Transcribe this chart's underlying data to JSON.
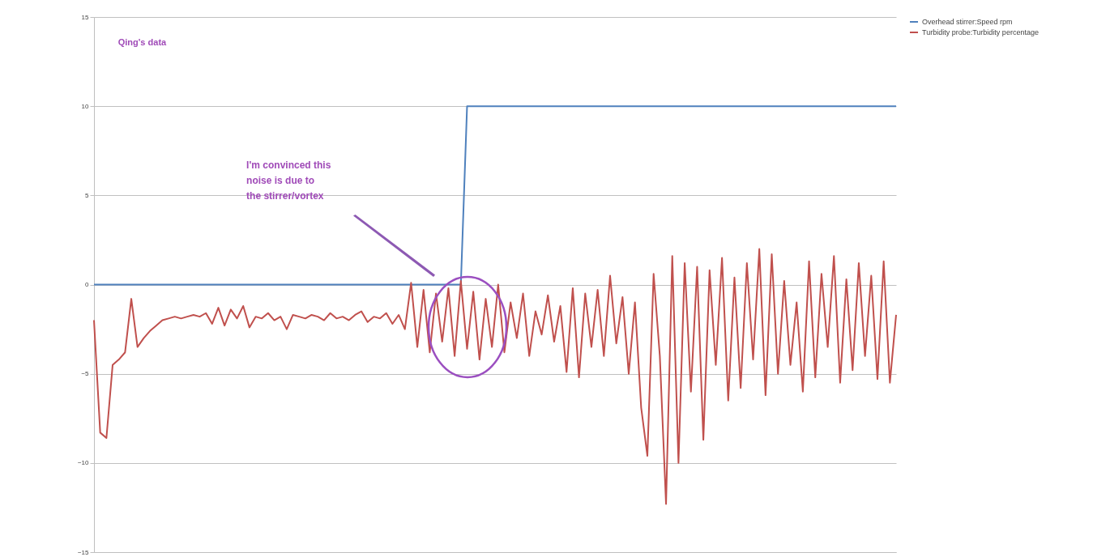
{
  "chart_data": {
    "type": "line",
    "categories": [
      null,
      null,
      null,
      null,
      null,
      null,
      null,
      null,
      null,
      null,
      null,
      null,
      null,
      null,
      null,
      null,
      null,
      null,
      null,
      null,
      null,
      null,
      null,
      null,
      null,
      null,
      null,
      null,
      null,
      null,
      null,
      null,
      null,
      null,
      null,
      null,
      null,
      null,
      null,
      null,
      null,
      null,
      null,
      null,
      null,
      null,
      null,
      null,
      null,
      null,
      null,
      null,
      null,
      null,
      null,
      null,
      null,
      null,
      null,
      null,
      null,
      null,
      null,
      null,
      null,
      null,
      null,
      null,
      null,
      null,
      null,
      null,
      null,
      null,
      null,
      null,
      null,
      null,
      null,
      null,
      null,
      null,
      null,
      null,
      null,
      null,
      null,
      null,
      null,
      null,
      null,
      null,
      null,
      null,
      null,
      null,
      null,
      null,
      null,
      null,
      null,
      null,
      null,
      null,
      null,
      null,
      null,
      null,
      null,
      null,
      null,
      null,
      null,
      null,
      null,
      null,
      null,
      null,
      null,
      null,
      null,
      null,
      null,
      null,
      null,
      null,
      null,
      null,
      null,
      null
    ],
    "series": [
      {
        "name": "Overhead stirrer:Speed rpm",
        "color": "#4f81bd",
        "values": [
          0,
          0,
          0,
          0,
          0,
          0,
          0,
          0,
          0,
          0,
          0,
          0,
          0,
          0,
          0,
          0,
          0,
          0,
          0,
          0,
          0,
          0,
          0,
          0,
          0,
          0,
          0,
          0,
          0,
          0,
          0,
          0,
          0,
          0,
          0,
          0,
          0,
          0,
          0,
          0,
          0,
          0,
          0,
          0,
          0,
          0,
          0,
          0,
          0,
          0,
          0,
          0,
          0,
          0,
          0,
          0,
          0,
          0,
          0,
          0,
          10,
          10,
          10,
          10,
          10,
          10,
          10,
          10,
          10,
          10,
          10,
          10,
          10,
          10,
          10,
          10,
          10,
          10,
          10,
          10,
          10,
          10,
          10,
          10,
          10,
          10,
          10,
          10,
          10,
          10,
          10,
          10,
          10,
          10,
          10,
          10,
          10,
          10,
          10,
          10,
          10,
          10,
          10,
          10,
          10,
          10,
          10,
          10,
          10,
          10,
          10,
          10,
          10,
          10,
          10,
          10,
          10,
          10,
          10,
          10,
          10,
          10,
          10,
          10,
          10,
          10,
          10,
          10,
          10,
          10
        ]
      },
      {
        "name": "Turbidity probe:Turbidity percentage",
        "color": "#c0504d",
        "values": [
          -2.0,
          -8.3,
          -8.6,
          -4.5,
          -4.2,
          -3.8,
          -0.8,
          -3.5,
          -3.0,
          -2.6,
          -2.3,
          -2.0,
          -1.9,
          -1.8,
          -1.9,
          -1.8,
          -1.7,
          -1.8,
          -1.6,
          -2.2,
          -1.3,
          -2.3,
          -1.4,
          -1.9,
          -1.2,
          -2.4,
          -1.8,
          -1.9,
          -1.6,
          -2.0,
          -1.8,
          -2.5,
          -1.7,
          -1.8,
          -1.9,
          -1.7,
          -1.8,
          -2.0,
          -1.6,
          -1.9,
          -1.8,
          -2.0,
          -1.7,
          -1.5,
          -2.1,
          -1.8,
          -1.9,
          -1.6,
          -2.2,
          -1.7,
          -2.5,
          0.1,
          -3.5,
          -0.3,
          -3.8,
          -0.5,
          -3.2,
          -0.2,
          -4.0,
          0.2,
          -3.6,
          -0.4,
          -4.2,
          -0.8,
          -3.5,
          0.0,
          -3.8,
          -1.0,
          -3.0,
          -0.5,
          -4.0,
          -1.5,
          -2.8,
          -0.6,
          -3.2,
          -1.2,
          -4.9,
          -0.2,
          -5.2,
          -0.5,
          -3.5,
          -0.3,
          -4.0,
          0.5,
          -3.3,
          -0.7,
          -5.0,
          -1.0,
          -6.9,
          -9.6,
          0.6,
          -4.0,
          -12.3,
          1.6,
          -10.0,
          1.2,
          -6.0,
          1.0,
          -8.7,
          0.8,
          -4.5,
          1.5,
          -6.5,
          0.4,
          -5.8,
          1.2,
          -4.2,
          2.0,
          -6.2,
          1.7,
          -5.0,
          0.2,
          -4.5,
          -1.0,
          -6.0,
          1.3,
          -5.2,
          0.6,
          -3.5,
          1.6,
          -5.5,
          0.3,
          -4.8,
          1.2,
          -4.0,
          0.5,
          -5.3,
          1.3,
          -5.5,
          -1.7
        ]
      }
    ],
    "ylim": [
      -15,
      15
    ],
    "yticks": [
      -15,
      -10,
      -5,
      0,
      5,
      10,
      15
    ],
    "grid": "y",
    "legend": "right",
    "tick_labels": "y",
    "annotations": [
      "Qing's data",
      "I'm convinced this noise is due to the stirrer/vortex"
    ]
  }
}
